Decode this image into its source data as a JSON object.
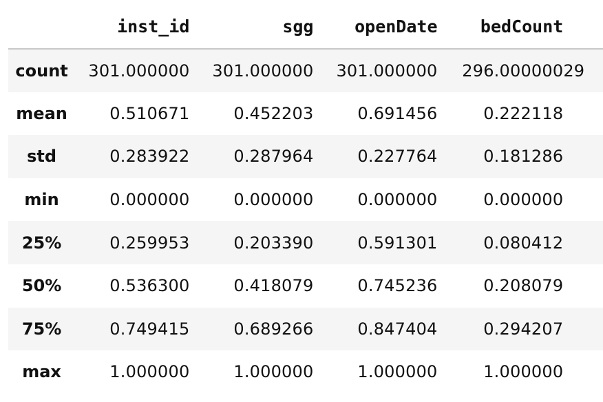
{
  "table": {
    "columns": [
      "inst_id",
      "sgg",
      "openDate",
      "bedCount",
      ""
    ],
    "rows": [
      {
        "label": "count",
        "values": [
          "301.000000",
          "301.000000",
          "301.000000",
          "296.000000",
          "29"
        ]
      },
      {
        "label": "mean",
        "values": [
          "0.510671",
          "0.452203",
          "0.691456",
          "0.222118",
          ""
        ]
      },
      {
        "label": "std",
        "values": [
          "0.283922",
          "0.287964",
          "0.227764",
          "0.181286",
          ""
        ]
      },
      {
        "label": "min",
        "values": [
          "0.000000",
          "0.000000",
          "0.000000",
          "0.000000",
          ""
        ]
      },
      {
        "label": "25%",
        "values": [
          "0.259953",
          "0.203390",
          "0.591301",
          "0.080412",
          ""
        ]
      },
      {
        "label": "50%",
        "values": [
          "0.536300",
          "0.418079",
          "0.745236",
          "0.208079",
          ""
        ]
      },
      {
        "label": "75%",
        "values": [
          "0.749415",
          "0.689266",
          "0.847404",
          "0.294207",
          ""
        ]
      },
      {
        "label": "max",
        "values": [
          "1.000000",
          "1.000000",
          "1.000000",
          "1.000000",
          ""
        ]
      }
    ]
  }
}
